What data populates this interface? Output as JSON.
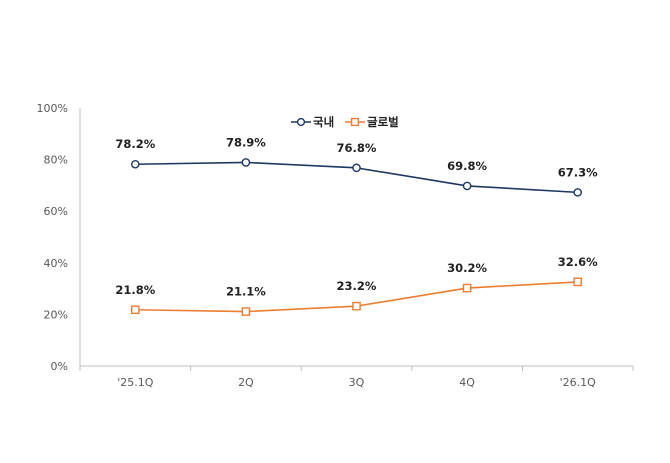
{
  "chart_data": {
    "type": "line",
    "categories": [
      "'25.1Q",
      "2Q",
      "3Q",
      "4Q",
      "'26.1Q"
    ],
    "series": [
      {
        "name": "국내",
        "values": [
          78.2,
          78.9,
          76.8,
          69.8,
          67.3
        ],
        "color": "#1F3864",
        "marker": "circle"
      },
      {
        "name": "글로벌",
        "values": [
          21.8,
          21.1,
          23.2,
          30.2,
          32.6
        ],
        "color": "#ED7D31",
        "marker": "square"
      }
    ],
    "data_labels": [
      [
        "78.2%",
        "78.9%",
        "76.8%",
        "69.8%",
        "67.3%"
      ],
      [
        "21.8%",
        "21.1%",
        "23.2%",
        "30.2%",
        "32.6%"
      ]
    ],
    "ylim": [
      0,
      100
    ],
    "yticks": [
      0,
      20,
      40,
      60,
      80,
      100
    ],
    "ytick_labels": [
      "0%",
      "20%",
      "40%",
      "60%",
      "80%",
      "100%"
    ],
    "grid": false,
    "legend_position": "top-center"
  }
}
